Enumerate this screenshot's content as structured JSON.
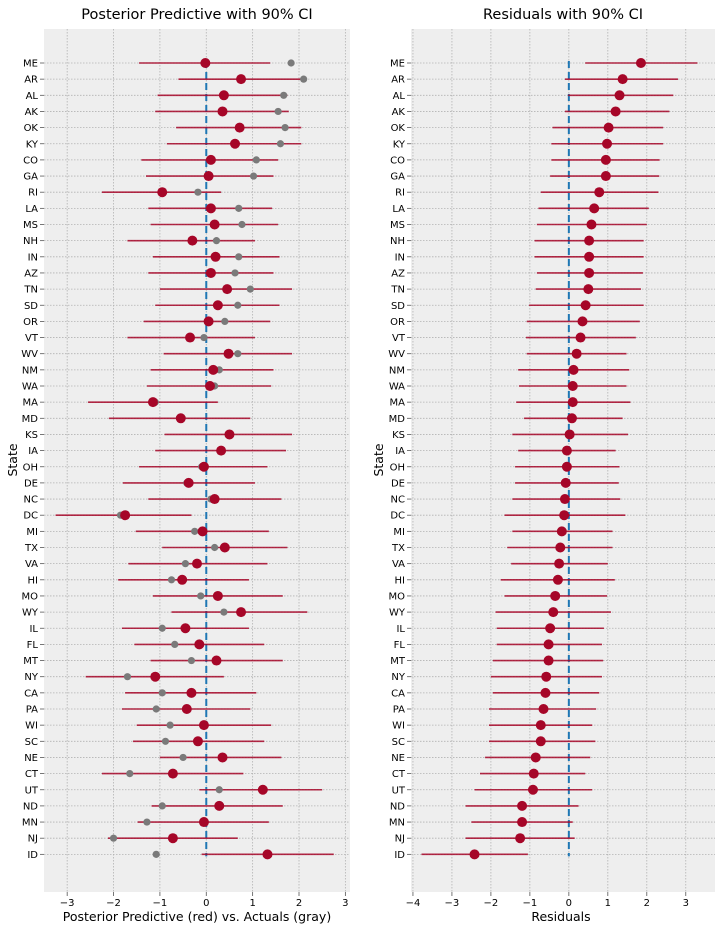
{
  "chart_data": [
    {
      "type": "scatter",
      "title": "Posterior Predictive with 90% CI",
      "xlabel": "Posterior Predictive (red) vs. Actuals (gray)",
      "ylabel": "State",
      "xlim": [
        -3.5,
        3.1
      ],
      "xticks": [
        -3,
        -2,
        -1,
        0,
        1,
        2,
        3
      ],
      "grid": true,
      "reference_line": 0,
      "states": [
        "ME",
        "AR",
        "AL",
        "AK",
        "OK",
        "KY",
        "CO",
        "GA",
        "RI",
        "LA",
        "MS",
        "NH",
        "IN",
        "AZ",
        "TN",
        "SD",
        "OR",
        "VT",
        "WV",
        "NM",
        "WA",
        "MA",
        "MD",
        "KS",
        "IA",
        "OH",
        "DE",
        "NC",
        "DC",
        "MI",
        "TX",
        "VA",
        "HI",
        "MO",
        "WY",
        "IL",
        "FL",
        "MT",
        "NY",
        "CA",
        "PA",
        "WI",
        "SC",
        "NE",
        "CT",
        "UT",
        "ND",
        "MN",
        "NJ",
        "ID"
      ],
      "series": [
        {
          "name": "Posterior Predictive",
          "color": "#a60628",
          "values": [
            -0.02,
            0.75,
            0.38,
            0.35,
            0.72,
            0.62,
            0.1,
            0.05,
            -0.95,
            0.1,
            0.18,
            -0.3,
            0.2,
            0.1,
            0.45,
            0.25,
            0.05,
            -0.35,
            0.48,
            0.15,
            0.08,
            -1.15,
            -0.55,
            0.5,
            0.32,
            -0.05,
            -0.38,
            0.18,
            -1.75,
            -0.08,
            0.4,
            -0.2,
            -0.52,
            0.25,
            0.75,
            -0.45,
            -0.15,
            0.22,
            -1.1,
            -0.32,
            -0.42,
            -0.05,
            -0.18,
            0.35,
            -0.72,
            1.22,
            0.28,
            -0.05,
            -0.72,
            1.32
          ],
          "lower": [
            -1.45,
            -0.6,
            -1.05,
            -1.1,
            -0.65,
            -0.85,
            -1.4,
            -1.3,
            -2.25,
            -1.25,
            -1.2,
            -1.7,
            -1.15,
            -1.25,
            -1.0,
            -1.1,
            -1.35,
            -1.7,
            -0.92,
            -1.2,
            -1.28,
            -2.55,
            -2.1,
            -0.9,
            -1.1,
            -1.45,
            -1.8,
            -1.25,
            -3.25,
            -1.52,
            -0.95,
            -1.68,
            -1.9,
            -1.15,
            -0.75,
            -1.82,
            -1.55,
            -1.2,
            -2.6,
            -1.75,
            -1.82,
            -1.5,
            -1.58,
            -1.0,
            -2.25,
            -0.15,
            -1.18,
            -1.48,
            -2.12,
            -0.1
          ],
          "upper": [
            1.38,
            2.12,
            1.75,
            1.78,
            2.05,
            2.05,
            1.55,
            1.45,
            0.32,
            1.42,
            1.55,
            1.05,
            1.58,
            1.45,
            1.85,
            1.58,
            1.38,
            1.05,
            1.85,
            1.45,
            1.4,
            0.25,
            0.95,
            1.85,
            1.72,
            1.32,
            1.05,
            1.62,
            -0.32,
            1.35,
            1.75,
            1.32,
            0.92,
            1.65,
            2.18,
            0.92,
            1.25,
            1.65,
            0.38,
            1.08,
            0.95,
            1.4,
            1.25,
            1.62,
            0.8,
            2.5,
            1.65,
            1.35,
            0.68,
            2.75
          ]
        },
        {
          "name": "Actuals",
          "color": "#7a7a7a",
          "values": [
            1.83,
            2.1,
            1.67,
            1.55,
            1.7,
            1.6,
            1.08,
            1.02,
            -0.18,
            0.7,
            0.77,
            0.22,
            0.7,
            0.62,
            0.95,
            0.68,
            0.4,
            -0.05,
            0.68,
            0.28,
            0.18,
            -1.1,
            -0.52,
            null,
            null,
            -0.1,
            -0.42,
            0.1,
            -1.85,
            -0.25,
            0.18,
            -0.45,
            -0.75,
            -0.12,
            0.38,
            -0.95,
            -0.68,
            -0.32,
            -1.7,
            -0.95,
            -1.08,
            -0.78,
            -0.88,
            -0.5,
            -1.65,
            0.28,
            -0.95,
            -1.28,
            -2.0,
            -1.08
          ]
        }
      ]
    },
    {
      "type": "scatter",
      "title": "Residuals with 90% CI",
      "xlabel": "Residuals",
      "ylabel": "State",
      "xlim": [
        -4.05,
        3.75
      ],
      "xticks": [
        -4,
        -3,
        -2,
        -1,
        0,
        1,
        2,
        3
      ],
      "grid": true,
      "reference_line": 0,
      "states": [
        "ME",
        "AR",
        "AL",
        "AK",
        "OK",
        "KY",
        "CO",
        "GA",
        "RI",
        "LA",
        "MS",
        "NH",
        "IN",
        "AZ",
        "TN",
        "SD",
        "OR",
        "VT",
        "WV",
        "NM",
        "WA",
        "MA",
        "MD",
        "KS",
        "IA",
        "OH",
        "DE",
        "NC",
        "DC",
        "MI",
        "TX",
        "VA",
        "HI",
        "MO",
        "WY",
        "IL",
        "FL",
        "MT",
        "NY",
        "CA",
        "PA",
        "WI",
        "SC",
        "NE",
        "CT",
        "UT",
        "ND",
        "MN",
        "NJ",
        "ID"
      ],
      "series": [
        {
          "name": "Residuals",
          "color": "#a60628",
          "values": [
            1.85,
            1.38,
            1.3,
            1.2,
            1.02,
            0.98,
            0.95,
            0.95,
            0.78,
            0.65,
            0.58,
            0.52,
            0.52,
            0.52,
            0.5,
            0.43,
            0.35,
            0.3,
            0.2,
            0.12,
            0.1,
            0.1,
            0.08,
            0.02,
            -0.05,
            -0.05,
            -0.08,
            -0.1,
            -0.12,
            -0.18,
            -0.22,
            -0.25,
            -0.28,
            -0.35,
            -0.4,
            -0.48,
            -0.52,
            -0.52,
            -0.58,
            -0.6,
            -0.65,
            -0.72,
            -0.72,
            -0.85,
            -0.9,
            -0.92,
            -1.2,
            -1.2,
            -1.25,
            -2.42
          ],
          "lower": [
            0.42,
            -0.1,
            -0.02,
            -0.1,
            -0.42,
            -0.45,
            -0.45,
            -0.48,
            -0.72,
            -0.78,
            -0.82,
            -0.88,
            -0.88,
            -0.82,
            -0.85,
            -1.02,
            -1.08,
            -1.1,
            -1.08,
            -1.3,
            -1.28,
            -1.35,
            -1.15,
            -1.45,
            -1.3,
            -1.38,
            -1.38,
            -1.45,
            -1.65,
            -1.45,
            -1.58,
            -1.48,
            -1.75,
            -1.65,
            -1.88,
            -1.85,
            -1.85,
            -1.95,
            -2.0,
            -1.95,
            -2.05,
            -2.05,
            -2.05,
            -2.15,
            -2.28,
            -2.42,
            -2.65,
            -2.5,
            -2.65,
            -3.78
          ],
          "upper": [
            3.3,
            2.8,
            2.68,
            2.58,
            2.42,
            2.42,
            2.33,
            2.32,
            2.3,
            2.05,
            2.0,
            1.92,
            1.92,
            1.9,
            1.85,
            1.92,
            1.82,
            1.72,
            1.48,
            1.55,
            1.48,
            1.58,
            1.38,
            1.52,
            1.2,
            1.3,
            1.28,
            1.32,
            1.45,
            1.12,
            1.12,
            1.0,
            1.18,
            0.98,
            1.08,
            0.9,
            0.85,
            0.88,
            0.85,
            0.78,
            0.7,
            0.6,
            0.68,
            0.55,
            0.42,
            0.6,
            0.25,
            0.1,
            0.15,
            -1.05
          ]
        }
      ]
    }
  ]
}
